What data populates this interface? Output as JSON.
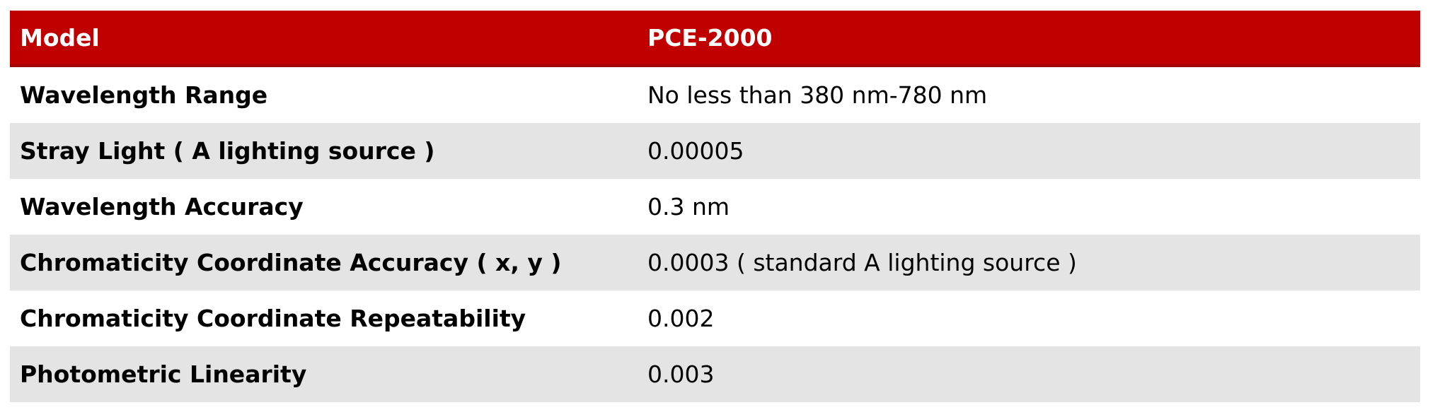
{
  "table": {
    "header": {
      "model_label": "Model",
      "model_value": "PCE-2000"
    },
    "rows": [
      {
        "label": "Wavelength Range",
        "value": "No less than 380 nm-780 nm"
      },
      {
        "label": "Stray Light ( A lighting source )",
        "value": "0.00005"
      },
      {
        "label": "Wavelength Accuracy",
        "value": "0.3 nm"
      },
      {
        "label": "Chromaticity Coordinate Accuracy ( x, y )",
        "value": "0.0003 ( standard A lighting source )"
      },
      {
        "label": "Chromaticity Coordinate Repeatability",
        "value": "0.002"
      },
      {
        "label": "Photometric Linearity",
        "value": "0.003"
      }
    ],
    "colors": {
      "header_bg": "#c00000",
      "header_border": "#a40000",
      "header_text": "#ffffff",
      "stripe_bg": "#e4e4e4",
      "row_bg": "#ffffff",
      "text": "#000000"
    }
  }
}
